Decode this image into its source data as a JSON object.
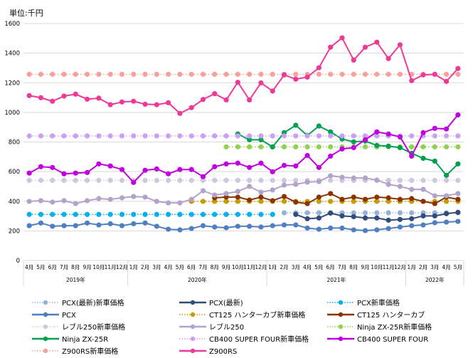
{
  "chart_data": {
    "type": "line",
    "unit_label": "単位:千円",
    "ylim": [
      0,
      1600
    ],
    "yticks": [
      0,
      200,
      400,
      600,
      800,
      1000,
      1200,
      1400,
      1600
    ],
    "grid": true,
    "legend_position": "bottom",
    "months": [
      "4月",
      "5月",
      "6月",
      "7月",
      "8月",
      "9月",
      "10月",
      "11月",
      "12月",
      "1月",
      "2月",
      "3月",
      "4月",
      "5月",
      "6月",
      "7月",
      "8月",
      "9月",
      "10月",
      "11月",
      "12月",
      "1月",
      "2月",
      "3月",
      "4月",
      "5月",
      "6月",
      "7月",
      "8月",
      "9月",
      "10月",
      "11月",
      "12月",
      "1月",
      "2月",
      "3月",
      "4月",
      "5月"
    ],
    "years": [
      {
        "label": "2019年",
        "from": 0,
        "to": 8
      },
      {
        "label": "2020年",
        "from": 9,
        "to": 20
      },
      {
        "label": "2021年",
        "from": 21,
        "to": 32
      },
      {
        "label": "2022年",
        "from": 33,
        "to": 37
      }
    ],
    "series": [
      {
        "name": "PCX(最新)新車価格",
        "color": "#93b1da",
        "dotted": true,
        "start": 22,
        "values": [
          322,
          322,
          322,
          322,
          322,
          322,
          322,
          322,
          322,
          322,
          322,
          322,
          322,
          322,
          322,
          322
        ]
      },
      {
        "name": "PCX(最新)",
        "color": "#2e4d7b",
        "dotted": false,
        "start": 23,
        "values": [
          311,
          282,
          287,
          320,
          301,
          296,
          287,
          287,
          272,
          277,
          282,
          301,
          301,
          316,
          325
        ]
      },
      {
        "name": "PCX新車価格",
        "color": "#00b0f0",
        "dotted": true,
        "start": 0,
        "values": [
          311,
          311,
          311,
          311,
          311,
          311,
          311,
          311,
          311,
          311,
          311,
          311,
          311,
          311,
          311,
          311,
          311,
          311,
          311,
          311,
          311,
          311
        ]
      },
      {
        "name": "PCX",
        "color": "#4f7fc0",
        "dotted": false,
        "start": 0,
        "values": [
          235,
          253,
          231,
          235,
          235,
          253,
          240,
          248,
          235,
          248,
          253,
          231,
          211,
          207,
          216,
          235,
          226,
          221,
          231,
          231,
          226,
          235,
          240,
          240,
          219,
          211,
          219,
          219,
          207,
          202,
          207,
          216,
          226,
          235,
          240,
          255,
          259,
          264
        ]
      },
      {
        "name": "CT125 ハンターカブ新車価格",
        "color": "#c89a00",
        "dotted": true,
        "start": 14,
        "values": [
          399,
          399,
          399,
          399,
          399,
          399,
          399,
          399,
          399,
          399,
          399,
          399,
          399,
          399,
          399,
          399,
          399,
          399,
          399,
          399,
          399,
          399,
          399,
          399
        ]
      },
      {
        "name": "CT125 ハンターカブ",
        "color": "#8b3300",
        "dotted": false,
        "start": 16,
        "values": [
          423,
          428,
          428,
          408,
          428,
          404,
          432,
          394,
          384,
          428,
          452,
          413,
          428,
          413,
          428,
          423,
          413,
          418,
          399,
          384,
          428,
          413
        ]
      },
      {
        "name": "レブル250新車価格",
        "color": "#cfc7dd",
        "dotted": true,
        "start": 0,
        "values": [
          541,
          541,
          541,
          541,
          541,
          541,
          541,
          541,
          541,
          541,
          541,
          541,
          541,
          541,
          541,
          541,
          541,
          541,
          541,
          541,
          541,
          541,
          541,
          541,
          541,
          541,
          541,
          541,
          541,
          541,
          541,
          541,
          541,
          541,
          541,
          541,
          541,
          541
        ]
      },
      {
        "name": "レブル250",
        "color": "#b3a2c9",
        "dotted": false,
        "start": 0,
        "values": [
          399,
          404,
          394,
          404,
          384,
          404,
          418,
          413,
          423,
          432,
          428,
          399,
          389,
          389,
          413,
          471,
          442,
          452,
          466,
          500,
          461,
          476,
          509,
          514,
          529,
          533,
          572,
          562,
          557,
          557,
          543,
          514,
          500,
          480,
          480,
          437,
          437,
          452
        ]
      },
      {
        "name": "Ninja ZX-25R新車価格",
        "color": "#92d050",
        "dotted": true,
        "start": 17,
        "values": [
          767,
          767,
          767,
          767,
          767,
          767,
          767,
          767,
          767,
          767,
          767,
          767,
          767,
          767,
          767,
          767,
          767,
          767,
          767,
          767,
          767
        ]
      },
      {
        "name": "Ninja ZX-25R",
        "color": "#00a050",
        "dotted": false,
        "start": 18,
        "values": [
          854,
          815,
          815,
          767,
          863,
          913,
          844,
          908,
          868,
          820,
          801,
          806,
          777,
          772,
          762,
          724,
          690,
          671,
          575,
          652
        ]
      },
      {
        "name": "CB400 SUPER FOUR新車価格",
        "color": "#c9a0f2",
        "dotted": true,
        "start": 0,
        "values": [
          841,
          841,
          841,
          841,
          841,
          841,
          841,
          841,
          841,
          841,
          841,
          841,
          841,
          841,
          841,
          841,
          841,
          841,
          841,
          841,
          841,
          841,
          841,
          841,
          841,
          841,
          841,
          841,
          841,
          841,
          841,
          841,
          841,
          841,
          841,
          841,
          841,
          841
        ]
      },
      {
        "name": "CB400 SUPER FOUR",
        "color": "#c000e0",
        "dotted": false,
        "start": 0,
        "values": [
          590,
          633,
          628,
          585,
          590,
          594,
          652,
          638,
          614,
          527,
          609,
          618,
          585,
          614,
          614,
          566,
          633,
          652,
          657,
          628,
          657,
          599,
          642,
          638,
          709,
          628,
          705,
          753,
          762,
          815,
          868,
          854,
          834,
          705,
          863,
          892,
          888,
          983
        ]
      },
      {
        "name": "Z900RS新車価格",
        "color": "#f6a19d",
        "dotted": true,
        "start": 0,
        "values": [
          1257,
          1257,
          1257,
          1257,
          1257,
          1257,
          1257,
          1257,
          1257,
          1257,
          1257,
          1257,
          1257,
          1257,
          1257,
          1257,
          1257,
          1257,
          1257,
          1257,
          1257,
          1257,
          1257,
          1257,
          1257,
          1257,
          1257,
          1257,
          1257,
          1257,
          1257,
          1257,
          1257,
          1257,
          1257,
          1257,
          1257,
          1257
        ]
      },
      {
        "name": "Z900RS",
        "color": "#ee3a96",
        "dotted": false,
        "start": 0,
        "values": [
          1113,
          1099,
          1075,
          1110,
          1123,
          1089,
          1096,
          1052,
          1070,
          1075,
          1055,
          1052,
          1065,
          993,
          1032,
          1087,
          1126,
          1084,
          1203,
          1084,
          1199,
          1144,
          1253,
          1224,
          1238,
          1301,
          1440,
          1503,
          1353,
          1440,
          1474,
          1363,
          1456,
          1214,
          1253,
          1257,
          1209,
          1296
        ]
      }
    ]
  }
}
